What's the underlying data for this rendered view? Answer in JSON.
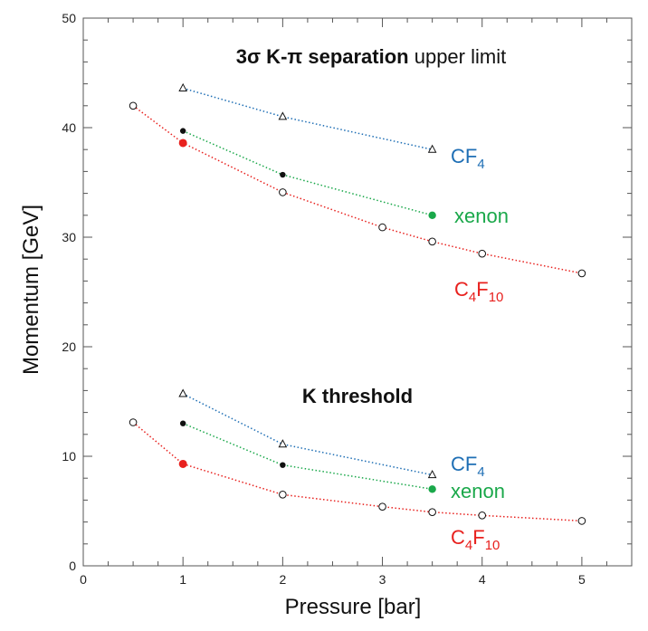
{
  "chart_data": {
    "type": "scatter",
    "title": "",
    "xlabel": "Pressure  [bar]",
    "ylabel": "Momentum  [GeV]",
    "xlim": [
      0,
      5.5
    ],
    "ylim": [
      0,
      50
    ],
    "x_ticks": [
      "0",
      "1",
      "2",
      "3",
      "4",
      "5"
    ],
    "y_ticks": [
      "0",
      "10",
      "20",
      "30",
      "40",
      "50"
    ],
    "grid": false,
    "annotations": [
      {
        "bold": "3σ K-π separation",
        "text": " upper limit"
      },
      {
        "bold": "K threshold",
        "text": ""
      }
    ],
    "groups": [
      {
        "name": "3σ K-π separation upper limit",
        "series": [
          {
            "name": "CF4",
            "label_main": "CF",
            "label_sub": "4",
            "label_main2": "",
            "label_sub2": "",
            "color": "#1f6fb5",
            "marker": "triangle-open",
            "points": [
              [
                1,
                43.6
              ],
              [
                2,
                41.0
              ],
              [
                3.5,
                38.0
              ]
            ]
          },
          {
            "name": "xenon",
            "label_main": "xenon",
            "label_sub": "",
            "label_main2": "",
            "label_sub2": "",
            "color": "#1aa84a",
            "marker": "circle-filled",
            "points": [
              [
                1,
                39.7
              ],
              [
                2,
                35.7
              ],
              [
                3.5,
                32.0
              ]
            ]
          },
          {
            "name": "C4F10",
            "label_main": "C",
            "label_sub": "4",
            "label_main2": "F",
            "label_sub2": "10",
            "color": "#e8211e",
            "marker": "circle-open",
            "points": [
              [
                0.5,
                42.0
              ],
              [
                1,
                38.6
              ],
              [
                2,
                34.1
              ],
              [
                3,
                30.9
              ],
              [
                3.5,
                29.6
              ],
              [
                4,
                28.5
              ],
              [
                5,
                26.7
              ]
            ]
          }
        ]
      },
      {
        "name": "K threshold",
        "series": [
          {
            "name": "CF4",
            "label_main": "CF",
            "label_sub": "4",
            "label_main2": "",
            "label_sub2": "",
            "color": "#1f6fb5",
            "marker": "triangle-open",
            "points": [
              [
                1,
                15.7
              ],
              [
                2,
                11.1
              ],
              [
                3.5,
                8.3
              ]
            ]
          },
          {
            "name": "xenon",
            "label_main": "xenon",
            "label_sub": "",
            "label_main2": "",
            "label_sub2": "",
            "color": "#1aa84a",
            "marker": "circle-filled",
            "points": [
              [
                1,
                13.0
              ],
              [
                2,
                9.2
              ],
              [
                3.5,
                7.0
              ]
            ]
          },
          {
            "name": "C4F10",
            "label_main": "C",
            "label_sub": "4",
            "label_main2": "F",
            "label_sub2": "10",
            "color": "#e8211e",
            "marker": "circle-open",
            "points": [
              [
                0.5,
                13.1
              ],
              [
                1,
                9.3
              ],
              [
                2,
                6.5
              ],
              [
                3,
                5.4
              ],
              [
                3.5,
                4.9
              ],
              [
                4,
                4.6
              ],
              [
                5,
                4.1
              ]
            ]
          }
        ]
      }
    ]
  }
}
